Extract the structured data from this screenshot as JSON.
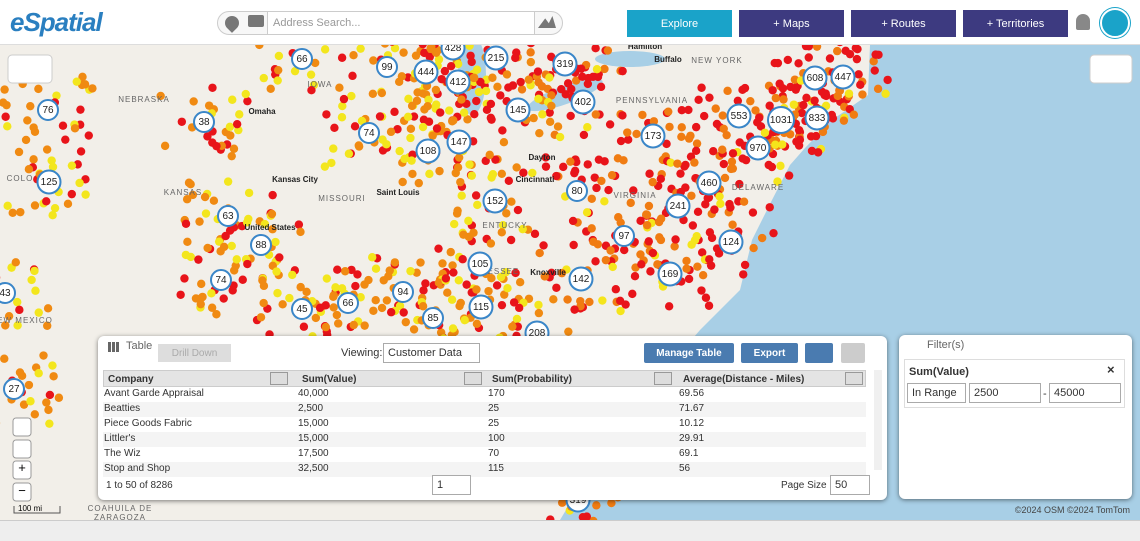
{
  "header": {
    "logo": "eSpatial",
    "search_placeholder": "Address Search...",
    "buttons": [
      "Explore",
      "+ Maps",
      "+ Routes",
      "+ Territories"
    ]
  },
  "map": {
    "clusters": [
      428,
      215,
      66,
      99,
      444,
      412,
      319,
      608,
      447,
      402,
      145,
      553,
      1031,
      833,
      38,
      76,
      74,
      147,
      108,
      173,
      970,
      125,
      460,
      80,
      152,
      241,
      63,
      88,
      97,
      124,
      105,
      142,
      169,
      74,
      43,
      94,
      45,
      66,
      115,
      85,
      208,
      27,
      319
    ],
    "labels": [
      "NEBRASKA",
      "Omaha",
      "KANSAS",
      "Kansas City",
      "MISSOURI",
      "Saint Louis",
      "United States",
      "COLO",
      "Dayton",
      "Cincinnati",
      "VIRGINIA",
      "DELAWARE",
      "PENNSYLVANIA",
      "NEW YORK",
      "Hamilton",
      "Buffalo",
      "ENTUCKY",
      "NESSEE",
      "Knoxville",
      "EW MEXICO",
      "IOWA",
      "COAHUILA DE",
      "ZARAGOZA"
    ],
    "scale": "100 mi",
    "attribution": "©2024 OSM ©2024 TomTom"
  },
  "table_panel": {
    "title": "Table",
    "drill_down": "Drill Down",
    "viewing_label": "Viewing:",
    "viewing": "Customer Data",
    "manage": "Manage Table",
    "export": "Export",
    "columns": [
      "Company",
      "Sum(Value)",
      "Sum(Probability)",
      "Average(Distance - Miles)"
    ],
    "rows": [
      [
        "Avant Garde Appraisal",
        "40,000",
        "170",
        "69.56"
      ],
      [
        "Beatties",
        "2,500",
        "25",
        "71.67"
      ],
      [
        "Piece Goods Fabric",
        "15,000",
        "25",
        "10.12"
      ],
      [
        "Littler's",
        "15,000",
        "100",
        "29.91"
      ],
      [
        "The Wiz",
        "17,500",
        "70",
        "69.1"
      ],
      [
        "Stop and Shop",
        "32,500",
        "115",
        "56"
      ]
    ],
    "summary": "1 to 50 of 8286",
    "page": "1",
    "page_size_label": "Page Size",
    "page_size": "50"
  },
  "filter_panel": {
    "title": "Filter(s)",
    "field": "Sum(Value)",
    "operator": "In Range",
    "min": "2500",
    "separator": "-",
    "max": "45000"
  }
}
